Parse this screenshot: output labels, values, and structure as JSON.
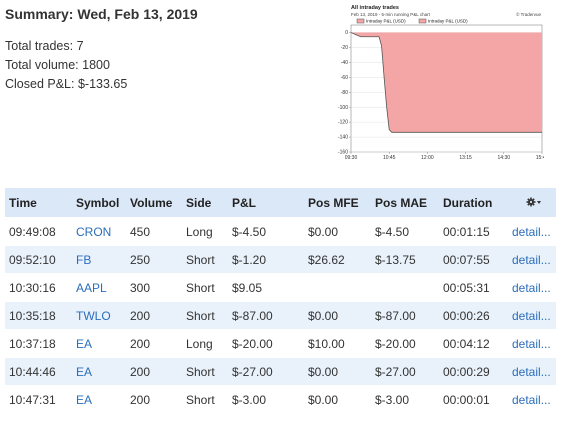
{
  "summary": {
    "title": "Summary: Wed, Feb 13, 2019",
    "total_trades": "Total trades: 7",
    "total_volume": "Total volume: 1800",
    "closed_pnl": "Closed P&L: $-133.65"
  },
  "chart_data": {
    "type": "area",
    "title": "All intraday trades",
    "subtitle": "Feb 13, 2019 - 5-min running P&L chart",
    "credit": "© Tradervue",
    "legend": [
      "Intraday P&L (USD)",
      "Intraday P&L (USD)"
    ],
    "x_tick_labels": [
      "09:30",
      "10:45",
      "12:00",
      "13:15",
      "14:30",
      "15:45"
    ],
    "y_tick_labels": [
      "0",
      "-20",
      "-40",
      "-60",
      "-80",
      "-100",
      "-120",
      "-140",
      "-160"
    ],
    "ylim": [
      -160,
      10
    ],
    "x": [
      "09:30",
      "09:45",
      "09:50",
      "09:55",
      "10:00",
      "10:05",
      "10:10",
      "10:20",
      "10:25",
      "10:30",
      "10:35",
      "10:40",
      "10:45",
      "10:50",
      "15:45"
    ],
    "values": [
      0,
      -4.5,
      -5.7,
      -5.7,
      -5.7,
      -5.7,
      -5.7,
      -5.7,
      -5.7,
      -18,
      -60,
      -100,
      -130,
      -133.65,
      -133.65
    ],
    "fill_color": "#f4a5a5",
    "line_color": "#555555"
  },
  "table": {
    "headers": [
      "Time",
      "Symbol",
      "Volume",
      "Side",
      "P&L",
      "Pos MFE",
      "Pos MAE",
      "Duration"
    ],
    "settings_icon": "gear-icon",
    "rows": [
      {
        "time": "09:49:08",
        "symbol": "CRON",
        "volume": "450",
        "side": "Long",
        "pnl": "$-4.50",
        "mfe": "$0.00",
        "mae": "$-4.50",
        "duration": "00:01:15",
        "detail": "detail..."
      },
      {
        "time": "09:52:10",
        "symbol": "FB",
        "volume": "250",
        "side": "Short",
        "pnl": "$-1.20",
        "mfe": "$26.62",
        "mae": "$-13.75",
        "duration": "00:07:55",
        "detail": "detail..."
      },
      {
        "time": "10:30:16",
        "symbol": "AAPL",
        "volume": "300",
        "side": "Short",
        "pnl": "$9.05",
        "mfe": "",
        "mae": "",
        "duration": "00:05:31",
        "detail": "detail..."
      },
      {
        "time": "10:35:18",
        "symbol": "TWLO",
        "volume": "200",
        "side": "Short",
        "pnl": "$-87.00",
        "mfe": "$0.00",
        "mae": "$-87.00",
        "duration": "00:00:26",
        "detail": "detail..."
      },
      {
        "time": "10:37:18",
        "symbol": "EA",
        "volume": "200",
        "side": "Long",
        "pnl": "$-20.00",
        "mfe": "$10.00",
        "mae": "$-20.00",
        "duration": "00:04:12",
        "detail": "detail..."
      },
      {
        "time": "10:44:46",
        "symbol": "EA",
        "volume": "200",
        "side": "Short",
        "pnl": "$-27.00",
        "mfe": "$0.00",
        "mae": "$-27.00",
        "duration": "00:00:29",
        "detail": "detail..."
      },
      {
        "time": "10:47:31",
        "symbol": "EA",
        "volume": "200",
        "side": "Short",
        "pnl": "$-3.00",
        "mfe": "$0.00",
        "mae": "$-3.00",
        "duration": "00:00:01",
        "detail": "detail..."
      }
    ]
  }
}
